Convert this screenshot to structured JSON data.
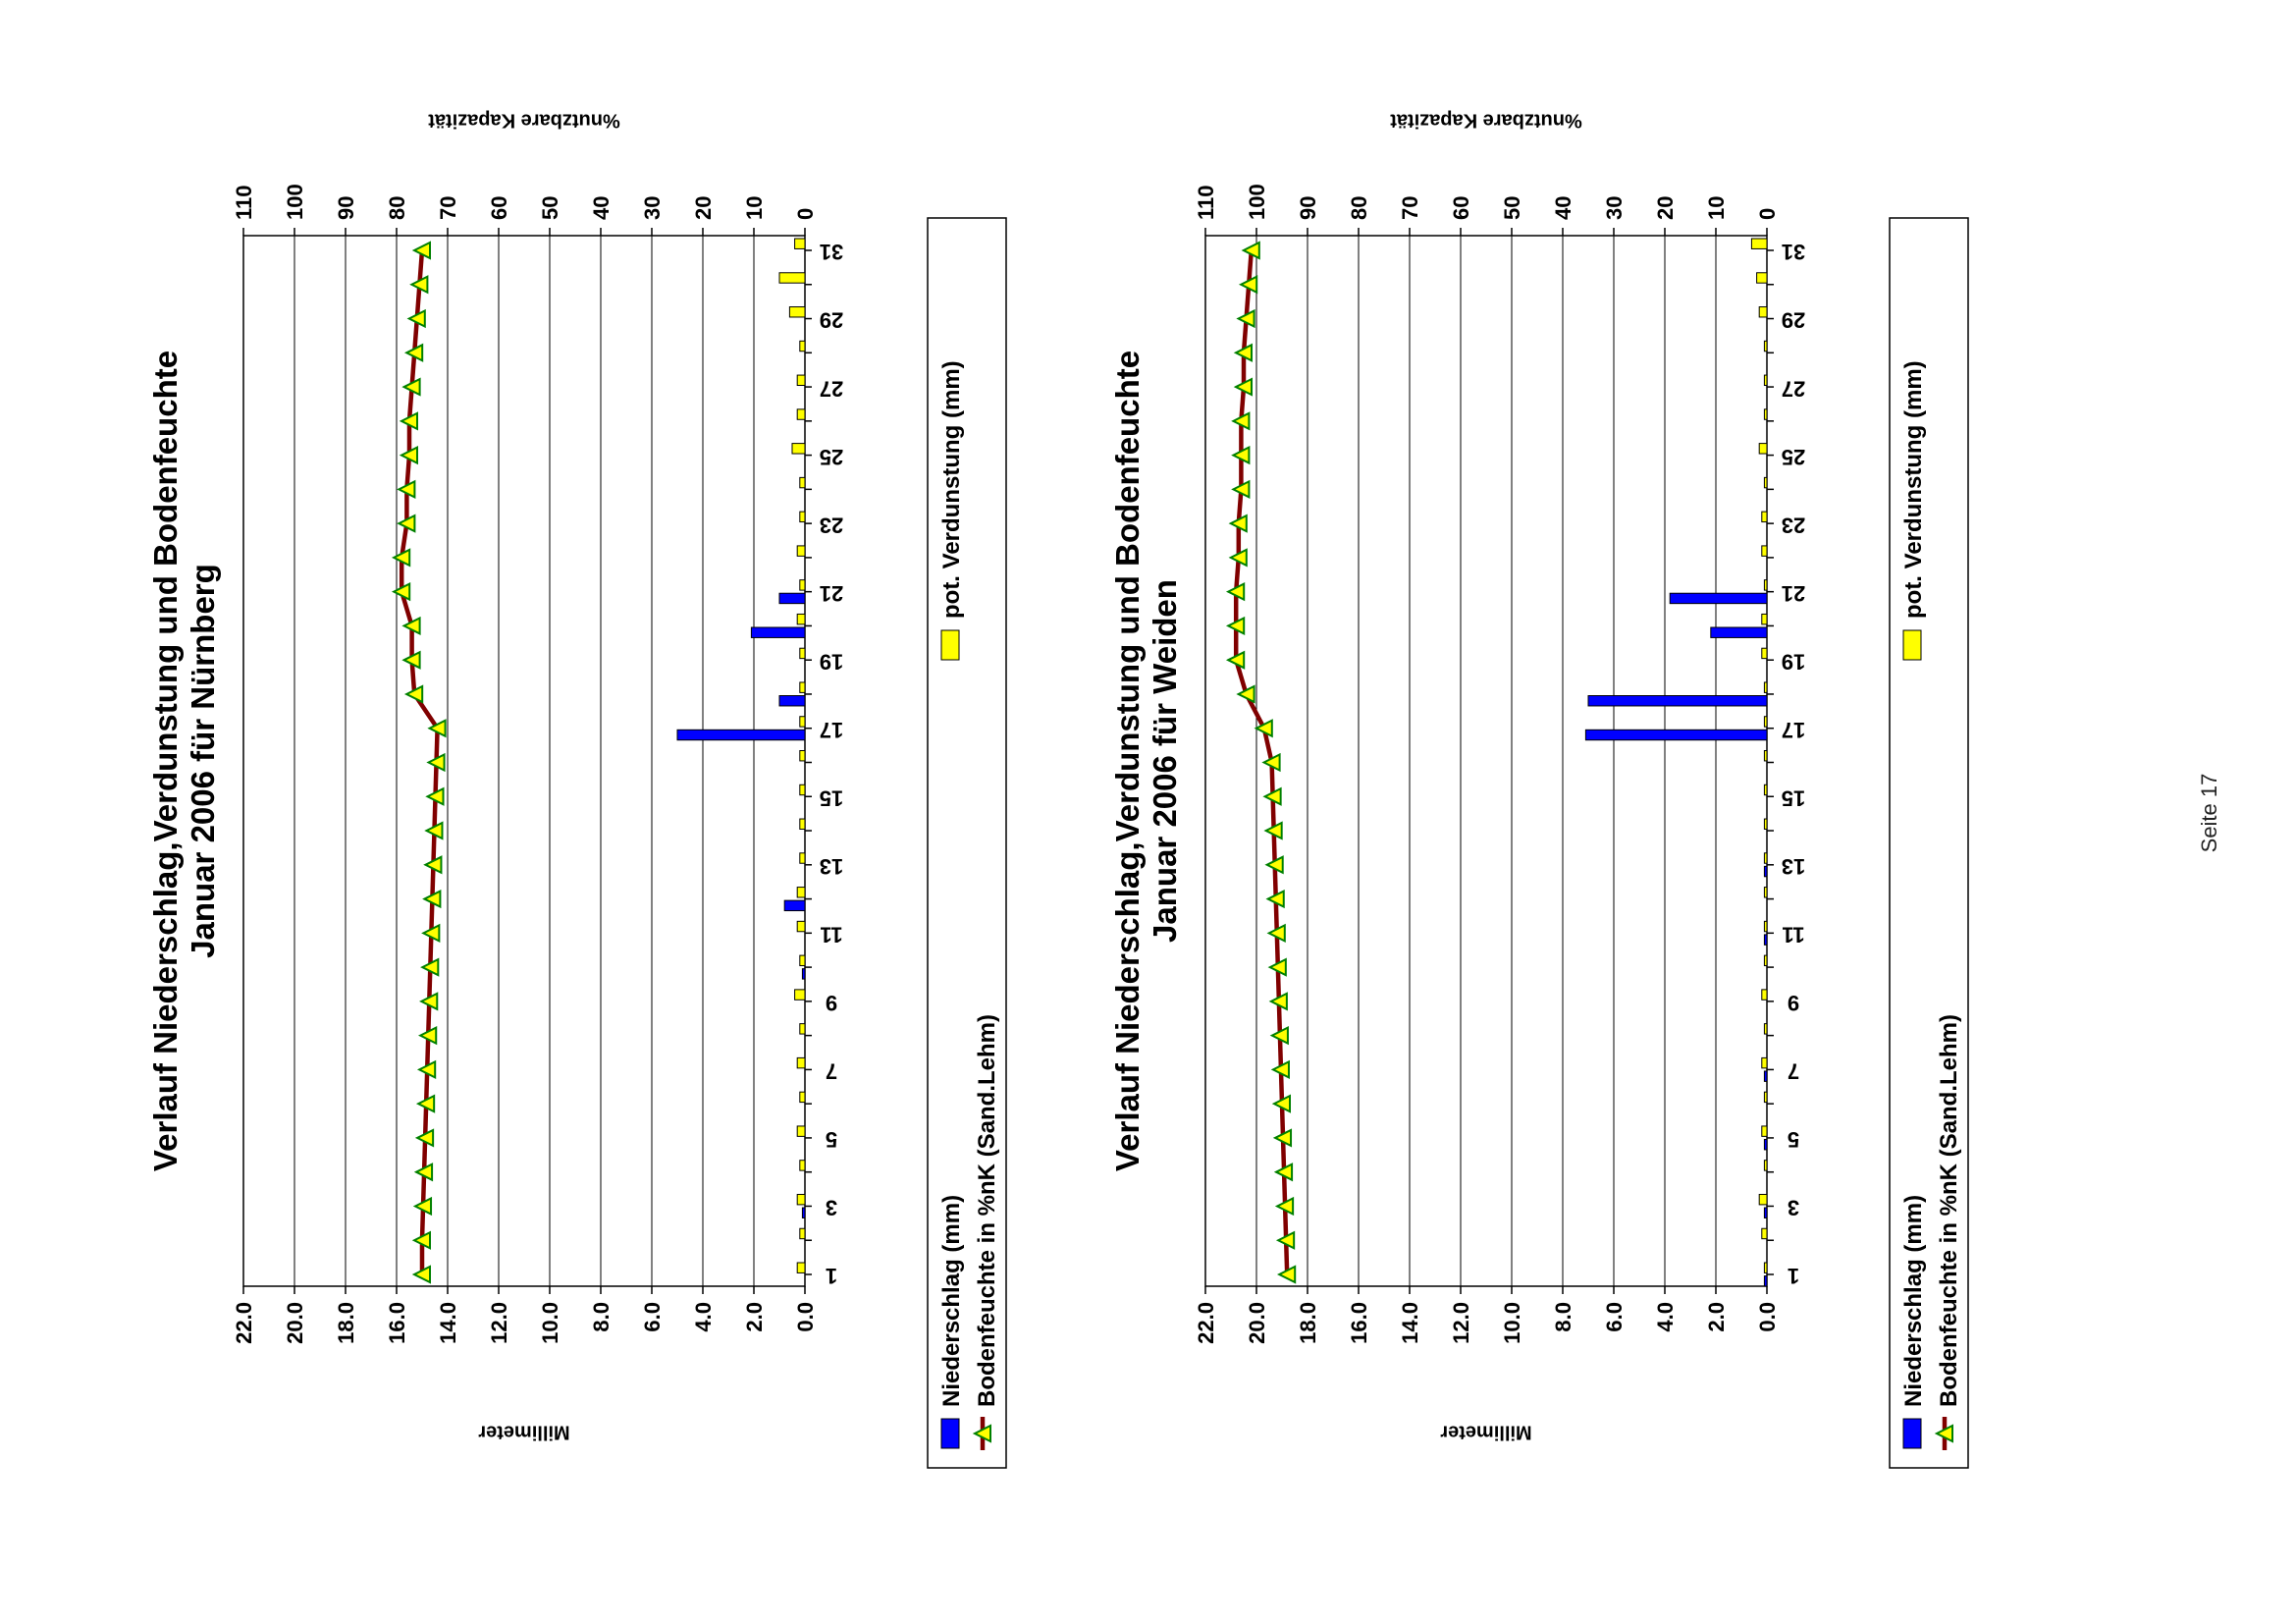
{
  "page": {
    "page_number": "Seite 17"
  },
  "chart_data": [
    {
      "type": "bar",
      "title": "Verlauf Niederschlag,Verdunstung und Bodenfeuchte",
      "subtitle": "Januar 2006 für Nürnberg",
      "ylabel": "Millimeter",
      "y2label": "%nutzbare Kapazität",
      "ylim": [
        0,
        22
      ],
      "y2lim": [
        0,
        110
      ],
      "y_ticks": [
        "0.0",
        "2.0",
        "4.0",
        "6.0",
        "8.0",
        "10.0",
        "12.0",
        "14.0",
        "16.0",
        "18.0",
        "20.0",
        "22.0"
      ],
      "y2_ticks": [
        "0",
        "10",
        "20",
        "30",
        "40",
        "50",
        "60",
        "70",
        "80",
        "90",
        "100",
        "110"
      ],
      "x": [
        1,
        2,
        3,
        4,
        5,
        6,
        7,
        8,
        9,
        10,
        11,
        12,
        13,
        14,
        15,
        16,
        17,
        18,
        19,
        20,
        21,
        22,
        23,
        24,
        25,
        26,
        27,
        28,
        29,
        30,
        31
      ],
      "x_tick_labels": [
        "1",
        "3",
        "5",
        "7",
        "9",
        "11",
        "13",
        "15",
        "17",
        "19",
        "21",
        "23",
        "25",
        "27",
        "29",
        "31"
      ],
      "grid": true,
      "legend_position": "bottom",
      "series": [
        {
          "name": "Niederschlag (mm)",
          "kind": "bar",
          "color": "#0000ff",
          "values": [
            0,
            0,
            0.1,
            0,
            0,
            0,
            0,
            0,
            0,
            0.1,
            0,
            0.8,
            0,
            0,
            0,
            0,
            5,
            1,
            0,
            2.1,
            1,
            0,
            0,
            0,
            0,
            0,
            0,
            0,
            0,
            0,
            0
          ]
        },
        {
          "name": "pot. Verdunstung (mm)",
          "kind": "bar",
          "color": "#ffff00",
          "values": [
            0.3,
            0.2,
            0.3,
            0.2,
            0.3,
            0.2,
            0.3,
            0.2,
            0.4,
            0.2,
            0.3,
            0.3,
            0.2,
            0.2,
            0.2,
            0.2,
            0.2,
            0.2,
            0.2,
            0.3,
            0.2,
            0.3,
            0.2,
            0.2,
            0.5,
            0.3,
            0.3,
            0.2,
            0.6,
            1.0,
            0.4
          ]
        },
        {
          "name": "Bodenfeuchte in %nK (Sand.Lehm)",
          "kind": "line",
          "color": "#800000",
          "marker_color": "#ffff00",
          "values": [
            75,
            75,
            74.8,
            74.6,
            74.4,
            74.2,
            74,
            73.8,
            73.6,
            73.4,
            73.2,
            73,
            72.8,
            72.6,
            72.4,
            72.2,
            72,
            76.5,
            77,
            77,
            79,
            79,
            78,
            78,
            77.5,
            77.5,
            77,
            76.5,
            76,
            75.5,
            75
          ]
        }
      ]
    },
    {
      "type": "bar",
      "title": "Verlauf Niederschlag,Verdunstung und Bodenfeuchte",
      "subtitle": "Januar 2006 für Weiden",
      "ylabel": "Millimeter",
      "y2label": "%nutzbare Kapazität",
      "ylim": [
        0,
        22
      ],
      "y2lim": [
        0,
        110
      ],
      "y_ticks": [
        "0.0",
        "2.0",
        "4.0",
        "6.0",
        "8.0",
        "10.0",
        "12.0",
        "14.0",
        "16.0",
        "18.0",
        "20.0",
        "22.0"
      ],
      "y2_ticks": [
        "0",
        "10",
        "20",
        "30",
        "40",
        "50",
        "60",
        "70",
        "80",
        "90",
        "100",
        "110"
      ],
      "x": [
        1,
        2,
        3,
        4,
        5,
        6,
        7,
        8,
        9,
        10,
        11,
        12,
        13,
        14,
        15,
        16,
        17,
        18,
        19,
        20,
        21,
        22,
        23,
        24,
        25,
        26,
        27,
        28,
        29,
        30,
        31
      ],
      "x_tick_labels": [
        "1",
        "3",
        "5",
        "7",
        "9",
        "11",
        "13",
        "15",
        "17",
        "19",
        "21",
        "23",
        "25",
        "27",
        "29",
        "31"
      ],
      "grid": true,
      "legend_position": "bottom",
      "series": [
        {
          "name": "Niederschlag (mm)",
          "kind": "bar",
          "color": "#0000ff",
          "values": [
            0.1,
            0,
            0.1,
            0,
            0.1,
            0,
            0.1,
            0,
            0,
            0,
            0.1,
            0,
            0.1,
            0,
            0,
            0,
            7.1,
            7.0,
            0,
            2.2,
            3.8,
            0,
            0,
            0,
            0,
            0,
            0,
            0,
            0,
            0,
            0
          ]
        },
        {
          "name": "pot. Verdunstung (mm)",
          "kind": "bar",
          "color": "#ffff00",
          "values": [
            0.1,
            0.2,
            0.3,
            0.1,
            0.2,
            0.1,
            0.2,
            0.1,
            0.2,
            0.1,
            0.1,
            0.1,
            0.1,
            0.1,
            0.1,
            0.1,
            0.1,
            0.1,
            0.2,
            0.2,
            0.1,
            0.2,
            0.2,
            0.1,
            0.3,
            0.1,
            0.1,
            0.1,
            0.3,
            0.4,
            0.6
          ]
        },
        {
          "name": "Bodenfeuchte in %nK (Sand.Lehm)",
          "kind": "line",
          "color": "#800000",
          "marker_color": "#ffff00",
          "values": [
            94,
            94.2,
            94.4,
            94.6,
            94.8,
            95,
            95.2,
            95.4,
            95.6,
            95.8,
            96,
            96.2,
            96.4,
            96.6,
            96.8,
            97,
            98.5,
            102,
            104,
            104,
            104,
            103.5,
            103.5,
            103,
            103,
            103,
            102.5,
            102.5,
            102,
            101.5,
            101
          ]
        }
      ]
    }
  ]
}
